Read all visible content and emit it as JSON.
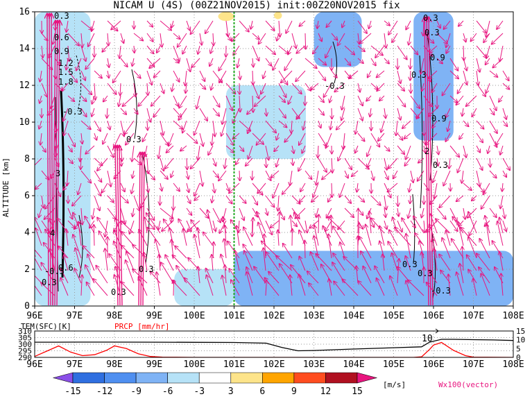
{
  "title": "NICAM U (4S) (00Z21NOV2015) init:00Z20NOV2015 fix",
  "chart_data": [
    {
      "type": "heatmap",
      "ylabel": "ALTITUDE [km]",
      "xlim": [
        96,
        108
      ],
      "ylim": [
        0,
        16
      ],
      "x_ticks": [
        "96E",
        "97E",
        "98E",
        "99E",
        "100E",
        "101E",
        "102E",
        "103E",
        "104E",
        "105E",
        "106E",
        "107E",
        "108E"
      ],
      "y_ticks": [
        "0",
        "2",
        "4",
        "6",
        "8",
        "10",
        "12",
        "14",
        "16"
      ],
      "grid": true,
      "marker_line_x": 101,
      "contour_labels": [
        "0.3",
        "-0.3",
        "0.6",
        "0.9",
        "1.2",
        "1.5",
        "1.8",
        "2",
        "1",
        "3",
        "4"
      ],
      "shaded_regions": [
        {
          "x": [
            96.0,
            97.4
          ],
          "y": [
            0,
            16
          ],
          "value": -6
        },
        {
          "x": [
            97.4,
            99.2
          ],
          "y": [
            5,
            12
          ],
          "value": -3
        },
        {
          "x": [
            100.8,
            102.8
          ],
          "y": [
            8,
            12
          ],
          "value": -6
        },
        {
          "x": [
            103.0,
            104.2
          ],
          "y": [
            13,
            16
          ],
          "value": -9
        },
        {
          "x": [
            105.5,
            106.5
          ],
          "y": [
            9,
            16
          ],
          "value": -9
        },
        {
          "x": [
            99.5,
            101.0
          ],
          "y": [
            0,
            2
          ],
          "value": -6
        },
        {
          "x": [
            101.0,
            108.0
          ],
          "y": [
            0,
            3
          ],
          "value": -9
        },
        {
          "x": [
            100.6,
            101.0
          ],
          "y": [
            15.5,
            16
          ],
          "value": 3
        },
        {
          "x": [
            102.0,
            102.2
          ],
          "y": [
            15.6,
            16
          ],
          "value": 3
        }
      ],
      "vector_legend": "Wx100(vector)",
      "colorbar": {
        "levels": [
          "-15",
          "-12",
          "-9",
          "-6",
          "-3",
          "3",
          "6",
          "9",
          "12",
          "15"
        ],
        "colors": [
          "#8b4fe8",
          "#2f6fe0",
          "#4f8ff0",
          "#7fb3f5",
          "#b6e2f7",
          "#ffffff",
          "#fde48a",
          "#ffa500",
          "#ff4d1f",
          "#b01020",
          "#e8157f"
        ],
        "unit": "[m/s]"
      }
    },
    {
      "type": "line",
      "xlim": [
        96,
        108
      ],
      "x_ticks": [
        "96E",
        "97E",
        "98E",
        "99E",
        "100E",
        "101E",
        "102E",
        "103E",
        "104E",
        "105E",
        "106E",
        "107E",
        "108E"
      ],
      "left_label": "TEM(SFC)[K]",
      "right_label": "PRCP [mm/hr]",
      "left_ticks": [
        "310",
        "305",
        "300",
        "295",
        "290"
      ],
      "right_ticks": [
        "15",
        "10",
        "5",
        "0"
      ],
      "left_ylim": [
        290,
        310
      ],
      "right_ylim": [
        0,
        15
      ],
      "annotation": "10",
      "series": [
        {
          "name": "TEM(SFC)[K]",
          "color": "#000000",
          "x": [
            96.0,
            96.5,
            97.0,
            98.0,
            99.0,
            100.0,
            101.0,
            101.8,
            102.2,
            102.6,
            103.0,
            104.0,
            105.0,
            105.7,
            105.9,
            106.2,
            106.5,
            107.0,
            107.5,
            108.0
          ],
          "y": [
            301.5,
            301.5,
            301.6,
            301.6,
            301.5,
            301.4,
            301.3,
            300.8,
            297.5,
            295.0,
            295.2,
            296.3,
            297.3,
            298.0,
            301.5,
            303.7,
            303.7,
            303.4,
            303.2,
            302.8
          ]
        },
        {
          "name": "PRCP [mm/hr]",
          "color": "#ff0000",
          "x": [
            96.0,
            96.3,
            96.6,
            96.9,
            97.2,
            97.5,
            97.8,
            98.0,
            98.3,
            98.6,
            98.9,
            99.2,
            100.0,
            101.0,
            102.0,
            103.0,
            104.0,
            105.0,
            105.5,
            105.7,
            105.9,
            106.0,
            106.2,
            106.5,
            106.8,
            107.0,
            108.0
          ],
          "y": [
            0.5,
            3.5,
            6.5,
            3.0,
            1.0,
            1.5,
            4.0,
            6.5,
            5.0,
            2.0,
            0.5,
            0.1,
            0.0,
            0.0,
            0.0,
            0.0,
            0.0,
            0.0,
            0.0,
            0.3,
            4.5,
            7.0,
            8.5,
            4.0,
            1.0,
            0.1,
            0.0
          ]
        }
      ]
    }
  ]
}
